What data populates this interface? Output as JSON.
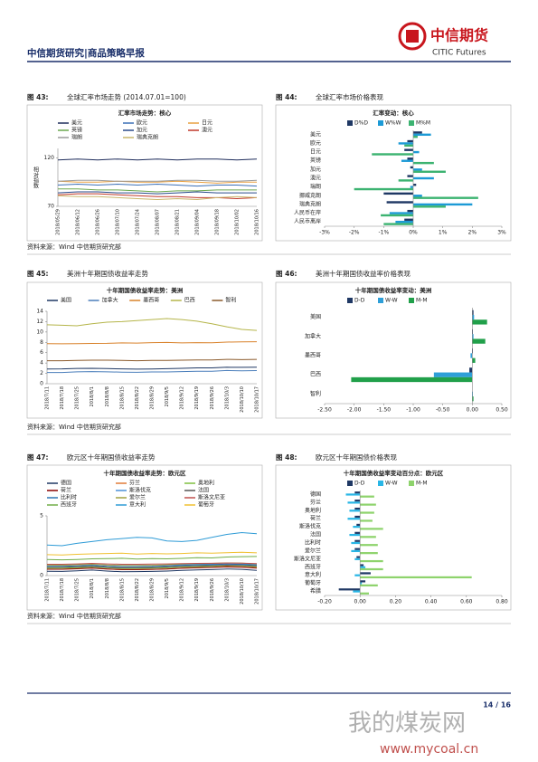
{
  "header": {
    "title": "中信期货研究|商品策略早报",
    "logo_cn": "中信期货",
    "logo_en": "CITIC Futures"
  },
  "figures": [
    {
      "label": "图 43:",
      "title": "全球汇率市场走势 (2014.07.01=100)",
      "chart": {
        "type": "line",
        "title": "汇率市场走势：核心",
        "ylabel": "相对指数",
        "categories": [
          "2018/05/29",
          "2018/06/12",
          "2018/06/26",
          "2018/07/10",
          "2018/07/24",
          "2018/08/07",
          "2018/08/21",
          "2018/09/04",
          "2018/09/18",
          "2018/10/02",
          "2018/10/16"
        ],
        "ylim": [
          70,
          130
        ],
        "yticks": [
          70,
          120
        ],
        "series": [
          {
            "name": "美元",
            "color": "#1f2d5c",
            "values": [
              118,
              119,
              118,
              119,
              118,
              119,
              118,
              119,
              119,
              118,
              119
            ]
          },
          {
            "name": "欧元",
            "color": "#3b6fb6",
            "values": [
              92,
              93,
              92,
              93,
              92,
              93,
              92,
              91,
              92,
              92,
              91
            ]
          },
          {
            "name": "日元",
            "color": "#e8a040",
            "values": [
              96,
              95,
              95,
              96,
              95,
              95,
              96,
              95,
              94,
              95,
              95
            ]
          },
          {
            "name": "英镑",
            "color": "#6aa84f",
            "values": [
              88,
              88,
              87,
              87,
              86,
              85,
              86,
              86,
              87,
              87,
              87
            ]
          },
          {
            "name": "加元",
            "color": "#2a4a8a",
            "values": [
              84,
              85,
              85,
              84,
              84,
              83,
              84,
              85,
              84,
              84,
              84
            ]
          },
          {
            "name": "澳元",
            "color": "#c0392b",
            "values": [
              82,
              83,
              83,
              82,
              81,
              80,
              80,
              79,
              79,
              78,
              79
            ]
          },
          {
            "name": "瑞朗",
            "color": "#9a9a9a",
            "values": [
              96,
              97,
              97,
              96,
              96,
              96,
              97,
              97,
              96,
              96,
              97
            ]
          },
          {
            "name": "瑞典克朗",
            "color": "#c9b56a",
            "values": [
              81,
              80,
              80,
              79,
              78,
              77,
              78,
              77,
              79,
              80,
              79
            ]
          }
        ]
      }
    },
    {
      "label": "图 44:",
      "title": "全球汇率市场价格表现",
      "chart": {
        "type": "hbar",
        "title": "汇率变动：核心",
        "categories": [
          "美元",
          "欧元",
          "日元",
          "英镑",
          "加元",
          "澳元",
          "瑞朗",
          "挪威克朗",
          "瑞典克朗",
          "人民币在岸",
          "人民币离岸"
        ],
        "xlim": [
          -3,
          3
        ],
        "xticks": [
          {
            "value": -3,
            "label": "-3%"
          },
          {
            "value": -2,
            "label": "-2%"
          },
          {
            "value": -1,
            "label": "-1%"
          },
          {
            "value": 0,
            "label": "0%"
          },
          {
            "value": 1,
            "label": "1%"
          },
          {
            "value": 2,
            "label": "2%"
          },
          {
            "value": 3,
            "label": "3%"
          }
        ],
        "series": [
          {
            "name": "D%D",
            "color": "#1f3864",
            "values": [
              0.3,
              -0.2,
              -0.3,
              -0.2,
              -0.1,
              -0.2,
              0.1,
              -1.0,
              -0.9,
              -0.2,
              -0.3
            ]
          },
          {
            "name": "W%W",
            "color": "#1c9ad6",
            "values": [
              0.6,
              -0.5,
              0.2,
              -0.4,
              0.3,
              0.7,
              -0.1,
              0.3,
              2.0,
              -0.8,
              -0.6
            ]
          },
          {
            "name": "M%M",
            "color": "#3cb371",
            "values": [
              0.15,
              -0.3,
              -1.4,
              0.7,
              1.1,
              -0.5,
              -2.0,
              2.2,
              1.1,
              -1.1,
              -1.0
            ]
          }
        ]
      }
    },
    {
      "label": "图 45:",
      "title": "美洲十年期国债收益率走势",
      "chart": {
        "type": "line",
        "title": "十年期国债收益率走势：美洲",
        "categories": [
          "2018/7/11",
          "2018/7/18",
          "2018/7/25",
          "2018/8/1",
          "2018/8/8",
          "2018/8/15",
          "2018/8/22",
          "2018/8/29",
          "2018/9/5",
          "2018/9/12",
          "2018/9/19",
          "2018/9/26",
          "2018/10/3",
          "2018/10/10",
          "2018/10/17"
        ],
        "ylim": [
          0,
          14
        ],
        "yticks": [
          0,
          2,
          4,
          6,
          8,
          10,
          12,
          14
        ],
        "series": [
          {
            "name": "美国",
            "color": "#1f3864",
            "values": [
              2.85,
              2.87,
              2.96,
              2.98,
              2.93,
              2.87,
              2.82,
              2.86,
              2.9,
              2.97,
              3.06,
              3.06,
              3.18,
              3.16,
              3.18
            ]
          },
          {
            "name": "加拿大",
            "color": "#4a7ebb",
            "values": [
              2.17,
              2.17,
              2.29,
              2.35,
              2.29,
              2.24,
              2.2,
              2.27,
              2.27,
              2.34,
              2.42,
              2.42,
              2.56,
              2.51,
              2.53
            ]
          },
          {
            "name": "墨西哥",
            "color": "#d9822b",
            "values": [
              7.75,
              7.72,
              7.74,
              7.78,
              7.8,
              7.9,
              7.85,
              7.95,
              7.98,
              7.9,
              7.95,
              7.92,
              8.05,
              8.1,
              8.12
            ]
          },
          {
            "name": "巴西",
            "color": "#b5b54a",
            "values": [
              11.4,
              11.3,
              11.2,
              11.6,
              11.9,
              12.0,
              12.2,
              12.4,
              12.6,
              12.4,
              12.1,
              11.6,
              11.0,
              10.5,
              10.3
            ]
          },
          {
            "name": "智利",
            "color": "#8b5a2b",
            "values": [
              4.45,
              4.45,
              4.5,
              4.55,
              4.55,
              4.5,
              4.45,
              4.5,
              4.5,
              4.55,
              4.6,
              4.6,
              4.7,
              4.65,
              4.7
            ]
          }
        ]
      }
    },
    {
      "label": "图 46:",
      "title": "美洲十年期国债收益率价格表现",
      "chart": {
        "type": "hbar",
        "title": "十年期国债收益率变动：美洲",
        "categories": [
          "美国",
          "加拿大",
          "墨西哥",
          "巴西",
          "智利"
        ],
        "xlim": [
          -2.5,
          0.5
        ],
        "xticks": [
          {
            "value": -2.5,
            "label": "-2.50"
          },
          {
            "value": -2,
            "label": "-2.00"
          },
          {
            "value": -1.5,
            "label": "-1.50"
          },
          {
            "value": -1,
            "label": "-1.00"
          },
          {
            "value": -0.5,
            "label": "-0.50"
          },
          {
            "value": 0,
            "label": "0.00"
          },
          {
            "value": 0.5,
            "label": "0.50"
          }
        ],
        "series": [
          {
            "name": "D-D",
            "color": "#1f3864",
            "values": [
              0.02,
              0.01,
              0.01,
              -0.05,
              0
            ]
          },
          {
            "name": "W-W",
            "color": "#2e9fd8",
            "values": [
              0.03,
              0.02,
              -0.03,
              -0.65,
              0.01
            ]
          },
          {
            "name": "M-M",
            "color": "#21a04a",
            "values": [
              0.25,
              0.22,
              0.05,
              -2.05,
              0.02
            ]
          }
        ]
      }
    },
    {
      "label": "图 47:",
      "title": "欧元区十年期国债收益率走势",
      "chart": {
        "type": "line",
        "title": "十年期国债收益率走势：欧元区",
        "categories": [
          "2018/7/11",
          "2018/7/18",
          "2018/7/25",
          "2018/8/1",
          "2018/8/8",
          "2018/8/15",
          "2018/8/22",
          "2018/8/29",
          "2018/9/5",
          "2018/9/12",
          "2018/9/19",
          "2018/9/26",
          "2018/10/3",
          "2018/10/10",
          "2018/10/17"
        ],
        "ylim": [
          0,
          5
        ],
        "yticks": [
          0,
          5
        ],
        "series": [
          {
            "name": "德国",
            "color": "#1f3864",
            "values": [
              0.36,
              0.35,
              0.4,
              0.46,
              0.38,
              0.32,
              0.33,
              0.35,
              0.38,
              0.43,
              0.47,
              0.5,
              0.55,
              0.52,
              0.44
            ]
          },
          {
            "name": "芬兰",
            "color": "#e07b39",
            "values": [
              0.55,
              0.54,
              0.58,
              0.64,
              0.55,
              0.5,
              0.5,
              0.52,
              0.56,
              0.62,
              0.66,
              0.7,
              0.76,
              0.73,
              0.66
            ]
          },
          {
            "name": "奥地利",
            "color": "#7fbf3f",
            "values": [
              0.62,
              0.62,
              0.67,
              0.72,
              0.65,
              0.6,
              0.6,
              0.62,
              0.65,
              0.72,
              0.75,
              0.78,
              0.84,
              0.82,
              0.74
            ]
          },
          {
            "name": "荷兰",
            "color": "#8b0000",
            "values": [
              0.53,
              0.53,
              0.57,
              0.62,
              0.55,
              0.5,
              0.5,
              0.52,
              0.55,
              0.61,
              0.65,
              0.68,
              0.73,
              0.7,
              0.63
            ]
          },
          {
            "name": "斯洛伐克",
            "color": "#4a90d9",
            "values": [
              0.9,
              0.88,
              0.9,
              0.93,
              0.88,
              0.85,
              0.85,
              0.86,
              0.88,
              0.92,
              0.95,
              0.96,
              0.98,
              0.97,
              0.95
            ]
          },
          {
            "name": "法国",
            "color": "#555555",
            "values": [
              0.7,
              0.7,
              0.73,
              0.78,
              0.7,
              0.65,
              0.66,
              0.68,
              0.72,
              0.78,
              0.82,
              0.84,
              0.88,
              0.86,
              0.8
            ]
          },
          {
            "name": "比利时",
            "color": "#2e75b6",
            "values": [
              0.78,
              0.78,
              0.82,
              0.86,
              0.78,
              0.74,
              0.74,
              0.76,
              0.8,
              0.86,
              0.9,
              0.92,
              0.96,
              0.94,
              0.88
            ]
          },
          {
            "name": "爱尔兰",
            "color": "#a0a040",
            "values": [
              0.88,
              0.86,
              0.9,
              0.95,
              0.88,
              0.84,
              0.84,
              0.86,
              0.9,
              0.96,
              1.0,
              1.02,
              1.06,
              1.04,
              0.98
            ]
          },
          {
            "name": "斯洛文尼亚",
            "color": "#c0504d",
            "values": [
              0.95,
              0.95,
              0.98,
              1.02,
              0.98,
              0.95,
              0.95,
              0.96,
              0.98,
              1.0,
              1.02,
              1.03,
              1.05,
              1.04,
              1.0
            ]
          },
          {
            "name": "西班牙",
            "color": "#70ad47",
            "values": [
              1.35,
              1.32,
              1.35,
              1.4,
              1.42,
              1.45,
              1.38,
              1.42,
              1.4,
              1.44,
              1.5,
              1.48,
              1.55,
              1.58,
              1.6
            ]
          },
          {
            "name": "意大利",
            "color": "#2e9bd6",
            "values": [
              2.55,
              2.5,
              2.7,
              2.85,
              3.0,
              3.1,
              3.2,
              3.15,
              2.9,
              2.85,
              2.95,
              3.2,
              3.45,
              3.6,
              3.5
            ]
          },
          {
            "name": "葡萄牙",
            "color": "#f0c030",
            "values": [
              1.75,
              1.72,
              1.78,
              1.82,
              1.85,
              1.88,
              1.8,
              1.85,
              1.82,
              1.85,
              1.9,
              1.88,
              1.92,
              1.95,
              1.9
            ]
          }
        ]
      }
    },
    {
      "label": "图 48:",
      "title": "欧元区十年期国债价格表现",
      "chart": {
        "type": "hbar",
        "title": "十年期国债收益率变动百分点：欧元区",
        "categories": [
          "德国",
          "芬兰",
          "奥地利",
          "荷兰",
          "斯洛伐克",
          "法国",
          "比利时",
          "爱尔兰",
          "斯洛文尼亚",
          "西班牙",
          "意大利",
          "葡萄牙",
          "希腊"
        ],
        "xlim": [
          -0.2,
          0.8
        ],
        "xticks": [
          {
            "value": -0.2,
            "label": "-0.20"
          },
          {
            "value": 0,
            "label": "0.00"
          },
          {
            "value": 0.2,
            "label": "0.20"
          },
          {
            "value": 0.4,
            "label": "0.40"
          },
          {
            "value": 0.6,
            "label": "0.60"
          },
          {
            "value": 0.8,
            "label": "0.80"
          }
        ],
        "series": [
          {
            "name": "D-D",
            "color": "#1f3864",
            "values": [
              -0.03,
              -0.03,
              -0.03,
              -0.03,
              -0.02,
              -0.03,
              -0.03,
              -0.03,
              -0.02,
              0.02,
              0.06,
              0.03,
              -0.12
            ]
          },
          {
            "name": "W-W",
            "color": "#29b6e6",
            "values": [
              -0.08,
              -0.07,
              -0.06,
              -0.07,
              -0.04,
              -0.06,
              -0.05,
              -0.05,
              -0.03,
              0.03,
              -0.03,
              0.01,
              -0.04
            ]
          },
          {
            "name": "M-M",
            "color": "#8ed36c",
            "values": [
              0.08,
              0.09,
              0.08,
              0.07,
              0.13,
              0.09,
              0.1,
              0.1,
              0.13,
              0.13,
              0.63,
              0.1,
              0.05
            ]
          }
        ]
      }
    }
  ],
  "sources": [
    "资料来源：Wind  中信期货研究部",
    "资料来源：Wind  中信期货研究部",
    "资料来源：Wind  中信期货研究部"
  ],
  "footer": {
    "page": "14 / 16"
  },
  "watermark": {
    "cn": "我的煤炭网",
    "url": "www.mycoal.cn"
  }
}
